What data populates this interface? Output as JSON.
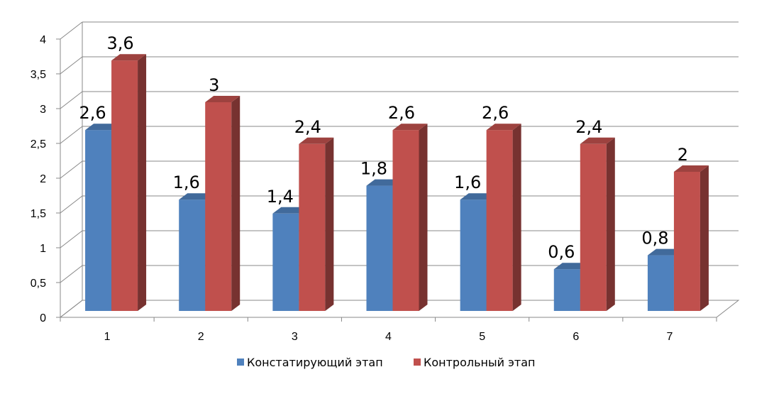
{
  "chart_data": {
    "type": "bar",
    "title": "",
    "xlabel": "",
    "ylabel": "",
    "categories": [
      "1",
      "2",
      "3",
      "4",
      "5",
      "6",
      "7"
    ],
    "series": [
      {
        "name": "Констатирующий этап",
        "values": [
          2.6,
          1.6,
          1.4,
          1.8,
          1.6,
          0.6,
          0.8
        ],
        "labels": [
          "2,6",
          "1,6",
          "1,4",
          "1,8",
          "1,6",
          "0,6",
          "0,8"
        ],
        "color": "#4F81BD"
      },
      {
        "name": "Контрольный этап",
        "values": [
          3.6,
          3.0,
          2.4,
          2.6,
          2.6,
          2.4,
          2.0
        ],
        "labels": [
          "3,6",
          "3",
          "2,4",
          "2,6",
          "2,6",
          "2,4",
          "2"
        ],
        "color": "#C0504D"
      }
    ],
    "ylim": [
      0,
      4
    ],
    "yticks": [
      {
        "value": 0,
        "label": "0"
      },
      {
        "value": 0.5,
        "label": "0,5"
      },
      {
        "value": 1,
        "label": "1"
      },
      {
        "value": 1.5,
        "label": "1,5"
      },
      {
        "value": 2,
        "label": "2"
      },
      {
        "value": 2.5,
        "label": "2,5"
      },
      {
        "value": 3,
        "label": "3"
      },
      {
        "value": 3.5,
        "label": "3,5"
      },
      {
        "value": 4,
        "label": "4"
      }
    ],
    "grid": true,
    "style": "3d-clustered-columns",
    "legend_position": "bottom"
  }
}
